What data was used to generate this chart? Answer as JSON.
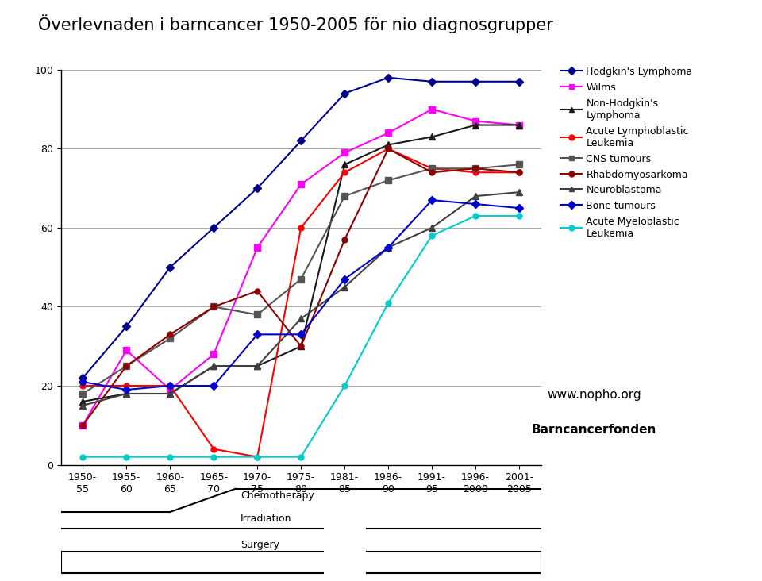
{
  "title": "Överlevnaden i barncancer 1950-2005 för nio diagnosgrupper",
  "x_labels": [
    "1950-\n55",
    "1955-\n60",
    "1960-\n65",
    "1965-\n70",
    "1970-\n75",
    "1975-\n80",
    "1981-\n85",
    "1986-\n90",
    "1991-\n95",
    "1996-\n2000",
    "2001-\n2005"
  ],
  "x_positions": [
    0,
    1,
    2,
    3,
    4,
    5,
    6,
    7,
    8,
    9,
    10
  ],
  "ylim": [
    0,
    100
  ],
  "series": [
    {
      "label": "Hodgkin's Lymphoma",
      "color": "#00008B",
      "marker": "D",
      "markersize": 5,
      "linewidth": 1.5,
      "values": [
        22,
        35,
        50,
        60,
        70,
        82,
        94,
        98,
        97,
        97,
        97
      ]
    },
    {
      "label": "Wilms",
      "color": "#FF00FF",
      "marker": "s",
      "markersize": 6,
      "linewidth": 1.5,
      "values": [
        10,
        29,
        19,
        28,
        55,
        71,
        79,
        84,
        90,
        87,
        86
      ]
    },
    {
      "label": "Non-Hodgkin's\nLymphoma",
      "color": "#1a1a1a",
      "marker": "^",
      "markersize": 6,
      "linewidth": 1.5,
      "values": [
        16,
        18,
        18,
        25,
        25,
        30,
        76,
        81,
        83,
        86,
        86
      ]
    },
    {
      "label": "Acute Lymphoblastic\nLeukemia",
      "color": "#FF0000",
      "marker": "o",
      "markersize": 5,
      "linewidth": 1.5,
      "values": [
        20,
        20,
        20,
        4,
        2,
        60,
        74,
        80,
        75,
        74,
        74
      ]
    },
    {
      "label": "CNS tumours",
      "color": "#555555",
      "marker": "s",
      "markersize": 6,
      "linewidth": 1.5,
      "values": [
        18,
        25,
        32,
        40,
        38,
        47,
        68,
        72,
        75,
        75,
        76
      ]
    },
    {
      "label": "Rhabdomyosarkoma",
      "color": "#8B0000",
      "marker": "o",
      "markersize": 5,
      "linewidth": 1.5,
      "values": [
        10,
        25,
        33,
        40,
        44,
        30,
        57,
        80,
        74,
        75,
        74
      ]
    },
    {
      "label": "Neuroblastoma",
      "color": "#404040",
      "marker": "^",
      "markersize": 6,
      "linewidth": 1.5,
      "values": [
        15,
        18,
        18,
        25,
        25,
        37,
        45,
        55,
        60,
        68,
        69
      ]
    },
    {
      "label": "Bone tumours",
      "color": "#0000CD",
      "marker": "D",
      "markersize": 5,
      "linewidth": 1.5,
      "values": [
        21,
        19,
        20,
        20,
        33,
        33,
        47,
        55,
        67,
        66,
        65
      ]
    },
    {
      "label": "Acute Myeloblastic\nLeukemia",
      "color": "#00CCCC",
      "marker": "o",
      "markersize": 5,
      "linewidth": 1.5,
      "values": [
        2,
        2,
        2,
        2,
        2,
        2,
        20,
        41,
        58,
        63,
        63
      ]
    }
  ],
  "background_color": "#ffffff",
  "grid_color": "#aaaaaa",
  "title_fontsize": 15,
  "axis_fontsize": 9,
  "legend_fontsize": 9,
  "nopho_text": "www.nopho.org",
  "barncancer_text": "Barncancerfonden",
  "treatment_labels": [
    "Chemotherapy",
    "Irradiation",
    "Surgery"
  ]
}
